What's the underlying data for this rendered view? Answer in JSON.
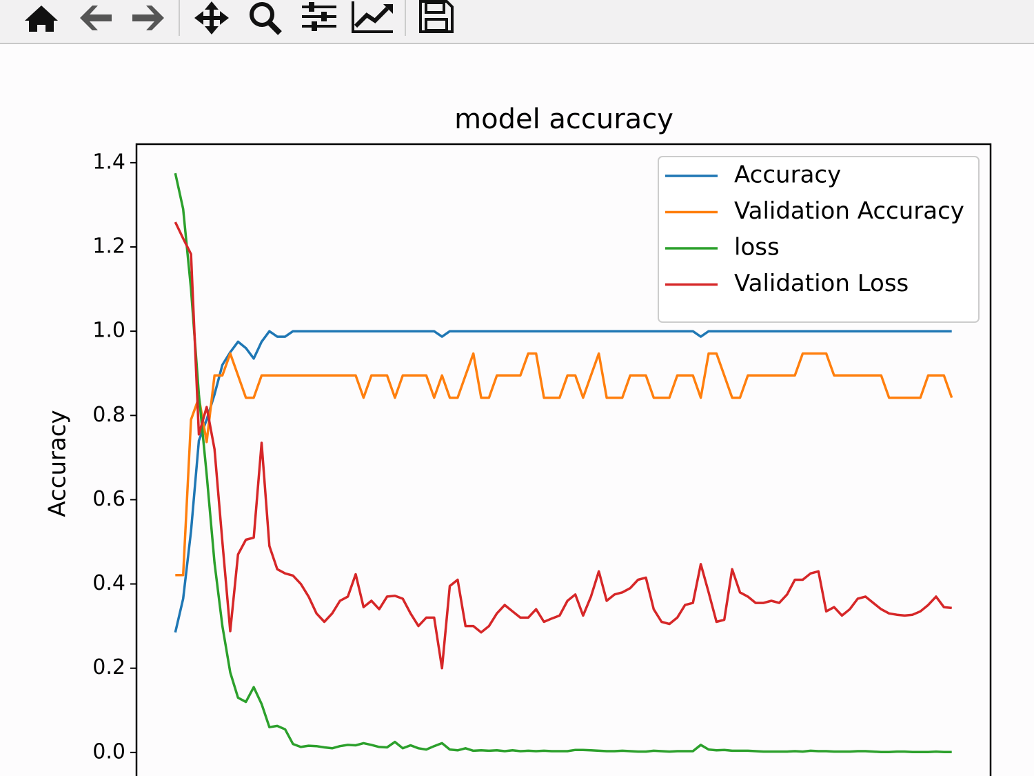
{
  "chart_data": {
    "type": "line",
    "title": "model accuracy",
    "y_label": "Accuracy",
    "ylim": [
      -0.069,
      1.444
    ],
    "yticks": [
      {
        "value": 0,
        "label": "0.0"
      },
      0.2,
      0.4,
      0.6,
      0.8,
      {
        "value": 1,
        "label": "1.0"
      },
      1.2,
      1.4
    ],
    "legend": "upper right",
    "series": [
      {
        "name": "Accuracy",
        "color": "#1f77b4",
        "values": [
          0.285,
          0.365,
          0.525,
          0.74,
          0.79,
          0.85,
          0.92,
          0.95,
          0.975,
          0.96,
          0.935,
          0.975,
          1.0,
          0.987,
          0.987,
          1.0,
          1.0,
          1.0,
          1.0,
          1.0,
          1.0,
          1.0,
          1.0,
          1.0,
          1.0,
          1.0,
          1.0,
          1.0,
          1.0,
          1.0,
          1.0,
          1.0,
          1.0,
          1.0,
          0.987,
          1.0,
          1.0,
          1.0,
          1.0,
          1.0,
          1.0,
          1.0,
          1.0,
          1.0,
          1.0,
          1.0,
          1.0,
          1.0,
          1.0,
          1.0,
          1.0,
          1.0,
          1.0,
          1.0,
          1.0,
          1.0,
          1.0,
          1.0,
          1.0,
          1.0,
          1.0,
          1.0,
          1.0,
          1.0,
          1.0,
          1.0,
          1.0,
          0.987,
          1.0,
          1.0,
          1.0,
          1.0,
          1.0,
          1.0,
          1.0,
          1.0,
          1.0,
          1.0,
          1.0,
          1.0,
          1.0,
          1.0,
          1.0,
          1.0,
          1.0,
          1.0,
          1.0,
          1.0,
          1.0,
          1.0,
          1.0,
          1.0,
          1.0,
          1.0,
          1.0,
          1.0,
          1.0,
          1.0,
          1.0,
          1.0
        ]
      },
      {
        "name": "Validation Accuracy",
        "color": "#ff7f0e",
        "values": [
          0.421,
          0.421,
          0.79,
          0.842,
          0.737,
          0.895,
          0.895,
          0.947,
          0.895,
          0.842,
          0.842,
          0.895,
          0.895,
          0.895,
          0.895,
          0.895,
          0.895,
          0.895,
          0.895,
          0.895,
          0.895,
          0.895,
          0.895,
          0.895,
          0.842,
          0.895,
          0.895,
          0.895,
          0.842,
          0.895,
          0.895,
          0.895,
          0.895,
          0.842,
          0.895,
          0.842,
          0.842,
          0.895,
          0.947,
          0.842,
          0.842,
          0.895,
          0.895,
          0.895,
          0.895,
          0.947,
          0.947,
          0.842,
          0.842,
          0.842,
          0.895,
          0.895,
          0.842,
          0.895,
          0.947,
          0.842,
          0.842,
          0.842,
          0.895,
          0.895,
          0.895,
          0.842,
          0.842,
          0.842,
          0.895,
          0.895,
          0.895,
          0.842,
          0.947,
          0.947,
          0.895,
          0.842,
          0.842,
          0.895,
          0.895,
          0.895,
          0.895,
          0.895,
          0.895,
          0.895,
          0.947,
          0.947,
          0.947,
          0.947,
          0.895,
          0.895,
          0.895,
          0.895,
          0.895,
          0.895,
          0.895,
          0.842,
          0.842,
          0.842,
          0.842,
          0.842,
          0.895,
          0.895,
          0.895,
          0.842
        ]
      },
      {
        "name": "loss",
        "color": "#2ca02c",
        "values": [
          1.375,
          1.29,
          1.1,
          0.85,
          0.66,
          0.45,
          0.3,
          0.19,
          0.13,
          0.12,
          0.155,
          0.115,
          0.06,
          0.063,
          0.055,
          0.02,
          0.013,
          0.016,
          0.015,
          0.012,
          0.01,
          0.015,
          0.018,
          0.017,
          0.022,
          0.018,
          0.013,
          0.012,
          0.025,
          0.01,
          0.017,
          0.01,
          0.007,
          0.015,
          0.022,
          0.007,
          0.005,
          0.01,
          0.004,
          0.005,
          0.004,
          0.005,
          0.003,
          0.005,
          0.003,
          0.004,
          0.003,
          0.004,
          0.003,
          0.003,
          0.003,
          0.006,
          0.006,
          0.005,
          0.004,
          0.003,
          0.003,
          0.004,
          0.003,
          0.002,
          0.002,
          0.004,
          0.003,
          0.002,
          0.003,
          0.003,
          0.003,
          0.018,
          0.007,
          0.005,
          0.006,
          0.004,
          0.004,
          0.004,
          0.003,
          0.002,
          0.002,
          0.002,
          0.002,
          0.003,
          0.002,
          0.004,
          0.003,
          0.003,
          0.002,
          0.002,
          0.002,
          0.003,
          0.003,
          0.002,
          0.001,
          0.001,
          0.002,
          0.002,
          0.001,
          0.001,
          0.001,
          0.002,
          0.001,
          0.001
        ]
      },
      {
        "name": "Validation Loss",
        "color": "#d62728",
        "values": [
          1.259,
          1.22,
          1.183,
          0.755,
          0.82,
          0.72,
          0.5,
          0.288,
          0.47,
          0.505,
          0.51,
          0.735,
          0.49,
          0.435,
          0.425,
          0.42,
          0.4,
          0.37,
          0.33,
          0.31,
          0.33,
          0.36,
          0.37,
          0.423,
          0.345,
          0.36,
          0.34,
          0.37,
          0.372,
          0.365,
          0.33,
          0.3,
          0.32,
          0.32,
          0.2,
          0.395,
          0.41,
          0.3,
          0.3,
          0.285,
          0.3,
          0.33,
          0.35,
          0.335,
          0.32,
          0.32,
          0.34,
          0.31,
          0.318,
          0.325,
          0.36,
          0.375,
          0.325,
          0.37,
          0.43,
          0.36,
          0.375,
          0.38,
          0.39,
          0.41,
          0.415,
          0.34,
          0.31,
          0.305,
          0.32,
          0.35,
          0.355,
          0.447,
          0.38,
          0.31,
          0.315,
          0.435,
          0.38,
          0.37,
          0.355,
          0.355,
          0.36,
          0.355,
          0.375,
          0.41,
          0.41,
          0.425,
          0.43,
          0.335,
          0.345,
          0.325,
          0.34,
          0.365,
          0.37,
          0.355,
          0.34,
          0.33,
          0.327,
          0.325,
          0.327,
          0.335,
          0.35,
          0.37,
          0.345,
          0.343
        ]
      }
    ]
  }
}
